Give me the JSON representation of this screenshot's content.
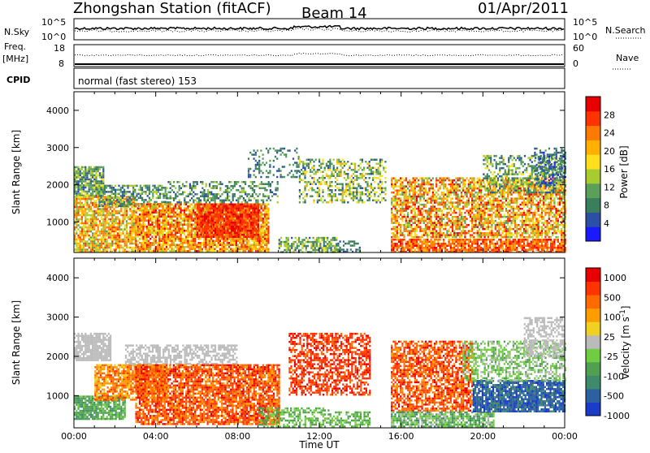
{
  "header": {
    "station": "Zhongshan Station (fitACF)",
    "beam": "Beam 14",
    "date": "01/Apr/2011"
  },
  "panels": {
    "nsky": {
      "label": "N.Sky",
      "right_label": "N.Search",
      "ticks_left": [
        "10^5",
        "10^0"
      ],
      "ticks_right": [
        "10^5",
        "10^0"
      ]
    },
    "freq": {
      "label_line1": "Freq.",
      "label_line2": "[MHz]",
      "right_label": "Nave",
      "ticks_left": [
        "18",
        "8"
      ],
      "ticks_right": [
        "60",
        "0"
      ]
    },
    "cpid": {
      "label": "CPID",
      "mode_text": "normal (fast stereo) 153"
    }
  },
  "colors": {
    "power_scale": [
      "#1a1aff",
      "#2c4fa6",
      "#3a7f5c",
      "#5aa05a",
      "#a8cc30",
      "#ffe01a",
      "#ffb000",
      "#ff7a00",
      "#ff3300",
      "#e80000"
    ],
    "velocity_scale": [
      "#1a3cc8",
      "#2c60a0",
      "#3f8a6a",
      "#4fa050",
      "#70cc40",
      "#bbbbbb",
      "#f0d020",
      "#ff9c00",
      "#ff6a00",
      "#ff3300",
      "#e80000"
    ]
  },
  "chart_data": [
    {
      "type": "heatmap",
      "panel": "power",
      "ylabel": "Slant Range [km]",
      "y_ticks": [
        "1000",
        "2000",
        "3000",
        "4000"
      ],
      "x_ticks": [
        "00:00",
        "04:00",
        "08:00",
        "12:00",
        "16:00",
        "20:00",
        "00:00"
      ],
      "colorbar_label": "Power [dB]",
      "colorbar_ticks": [
        "4",
        "8",
        "12",
        "16",
        "20",
        "24",
        "28"
      ],
      "y_range_km": [
        180,
        4500
      ],
      "x_range_hours": [
        0,
        24
      ],
      "c_range": [
        0,
        30
      ]
    },
    {
      "type": "heatmap",
      "panel": "velocity",
      "ylabel": "Slant Range [km]",
      "y_ticks": [
        "1000",
        "2000",
        "3000",
        "4000"
      ],
      "x_ticks": [
        "00:00",
        "04:00",
        "08:00",
        "12:00",
        "16:00",
        "20:00",
        "00:00"
      ],
      "xlabel": "Time UT",
      "colorbar_label": "Velocity [m s^-1]",
      "colorbar_ticks": [
        "1000",
        "500",
        "100",
        "25",
        "-25",
        "-100",
        "-500",
        "-1000"
      ],
      "y_range_km": [
        180,
        4500
      ],
      "x_range_hours": [
        0,
        24
      ]
    }
  ]
}
